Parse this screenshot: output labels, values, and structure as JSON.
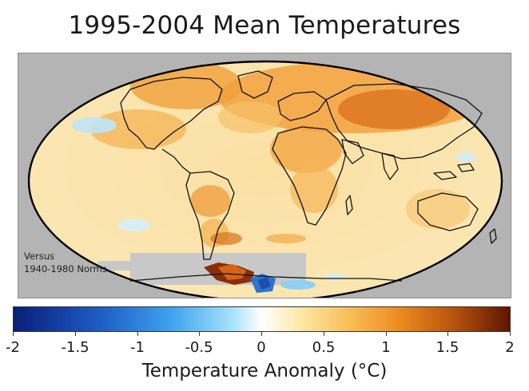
{
  "title": "1995-2004 Mean Temperatures",
  "map": {
    "note_line1": "Versus",
    "note_line2": "1940-1980 Norms",
    "colors": {
      "background": "#b4b4b4",
      "no_data": "#c8c8c8",
      "cool": "#6ab8e8",
      "neutral": "#ffffff",
      "warm": "#f6b04a",
      "hot": "#c4600f"
    }
  },
  "colorbar": {
    "min": -2,
    "max": 2,
    "ticks": [
      "-2",
      "-1.5",
      "-1",
      "-0.5",
      "0",
      "0.5",
      "1",
      "1.5",
      "2"
    ],
    "label": "Temperature Anomaly (°C)"
  }
}
